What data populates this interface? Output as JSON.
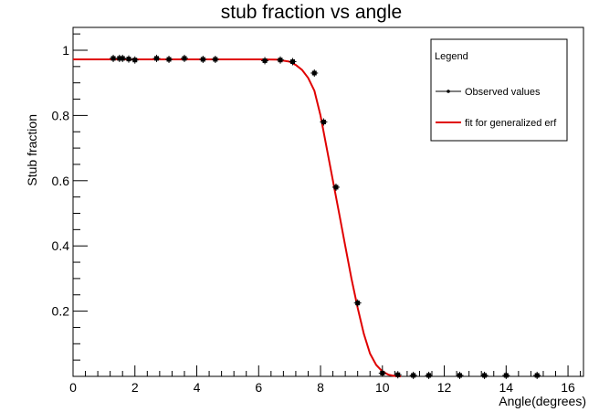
{
  "chart_data": {
    "type": "scatter",
    "title": "stub fraction vs angle",
    "xlabel": "Angle(degrees)",
    "ylabel": "Stub fraction",
    "xlim": [
      0,
      16.5
    ],
    "ylim": [
      0.0,
      1.07
    ],
    "x_ticks": [
      0,
      2,
      4,
      6,
      8,
      10,
      12,
      14,
      16
    ],
    "y_ticks": [
      0.2,
      0.4,
      0.6,
      0.8,
      1
    ],
    "grid": false,
    "legend": {
      "title": "Legend",
      "placement": "top-right",
      "entries": [
        {
          "label": "Observed values",
          "kind": "marker-line",
          "color": "#000000"
        },
        {
          "label": "fit for generalized erf",
          "kind": "line",
          "color": "#e00000"
        }
      ]
    },
    "series": [
      {
        "name": "Observed values",
        "kind": "points",
        "color": "#000000",
        "x": [
          1.3,
          1.5,
          1.6,
          1.8,
          2.0,
          2.7,
          3.1,
          3.6,
          4.2,
          4.6,
          6.2,
          6.7,
          7.1,
          7.8,
          8.1,
          8.5,
          9.2,
          10.0,
          10.5,
          11.0,
          11.5,
          12.5,
          13.3,
          14.0,
          15.0
        ],
        "y": [
          0.975,
          0.975,
          0.975,
          0.973,
          0.97,
          0.975,
          0.972,
          0.975,
          0.972,
          0.972,
          0.968,
          0.97,
          0.965,
          0.93,
          0.78,
          0.58,
          0.225,
          0.01,
          0.005,
          0.003,
          0.003,
          0.003,
          0.003,
          0.003,
          0.003
        ]
      },
      {
        "name": "fit for generalized erf",
        "kind": "curve",
        "color": "#e00000",
        "x": [
          0,
          6.0,
          6.6,
          7.0,
          7.2,
          7.4,
          7.6,
          7.8,
          8.0,
          8.2,
          8.4,
          8.6,
          8.8,
          9.0,
          9.2,
          9.4,
          9.6,
          9.8,
          10.0,
          10.2,
          10.4,
          10.6
        ],
        "y": [
          0.972,
          0.972,
          0.971,
          0.965,
          0.955,
          0.94,
          0.915,
          0.876,
          0.8,
          0.7,
          0.6,
          0.5,
          0.4,
          0.3,
          0.21,
          0.13,
          0.07,
          0.035,
          0.015,
          0.005,
          0.001,
          0.0
        ]
      }
    ]
  }
}
